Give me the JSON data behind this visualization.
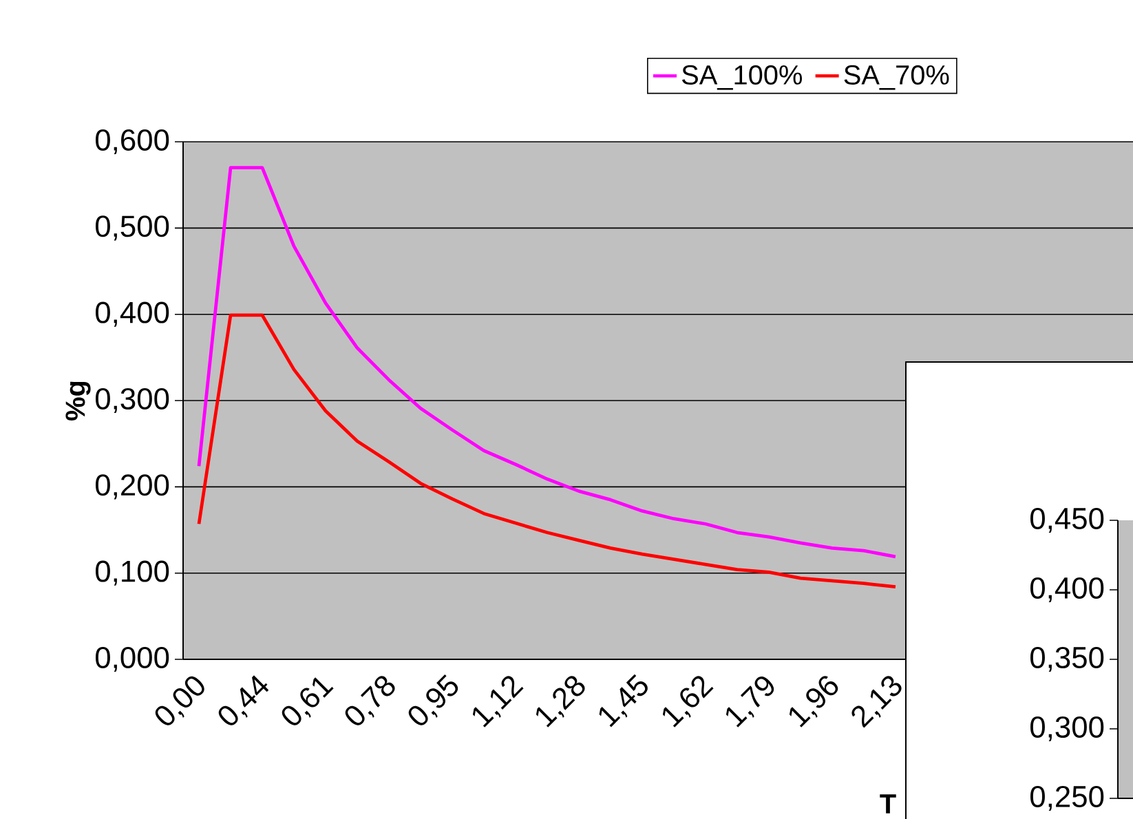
{
  "chart_data": [
    {
      "type": "line",
      "xlabel": "T",
      "ylabel": "%g",
      "categories": [
        "0,00",
        null,
        "0,44",
        null,
        "0,61",
        null,
        "0,78",
        null,
        "0,95",
        null,
        "1,12",
        null,
        "1,28",
        null,
        "1,45",
        null,
        "1,62",
        null,
        "1,79",
        null,
        "1,96",
        null,
        "2,13"
      ],
      "series": [
        {
          "name": "SA_100%",
          "color": "#ff00ff",
          "values": [
            0.224,
            0.57,
            0.57,
            0.479,
            0.413,
            0.361,
            0.324,
            0.291,
            0.266,
            0.242,
            0.226,
            0.209,
            0.195,
            0.185,
            0.172,
            0.163,
            0.157,
            0.147,
            0.142,
            0.135,
            0.129,
            0.126,
            0.119
          ]
        },
        {
          "name": "SA_70%",
          "color": "#ff0000",
          "values": [
            0.157,
            0.399,
            0.399,
            0.336,
            0.288,
            0.253,
            0.229,
            0.204,
            0.186,
            0.169,
            0.158,
            0.147,
            0.138,
            0.129,
            0.122,
            0.116,
            0.11,
            0.104,
            0.101,
            0.094,
            0.091,
            0.088,
            0.084
          ]
        }
      ],
      "ylim": [
        0,
        0.6
      ],
      "yticks": [
        {
          "value": 0,
          "label": "0,000"
        },
        {
          "value": 0.1,
          "label": "0,100"
        },
        {
          "value": 0.2,
          "label": "0,200"
        },
        {
          "value": 0.3,
          "label": "0,300"
        },
        {
          "value": 0.4,
          "label": "0,400"
        },
        {
          "value": 0.5,
          "label": "0,500"
        },
        {
          "value": 0.6,
          "label": "0,600"
        }
      ],
      "grid": "y",
      "legend": "top right",
      "marker": "none",
      "line_style": "solid"
    },
    {
      "type": "line",
      "categories": [
        null
      ],
      "ylim": [
        0.25,
        0.45
      ],
      "yticks": [
        {
          "value": 0.25,
          "label": "0,250"
        },
        {
          "value": 0.3,
          "label": "0,300"
        },
        {
          "value": 0.35,
          "label": "0,350"
        },
        {
          "value": 0.4,
          "label": "0,400"
        },
        {
          "value": 0.45,
          "label": "0,450"
        }
      ],
      "tick_labels": "y"
    }
  ]
}
